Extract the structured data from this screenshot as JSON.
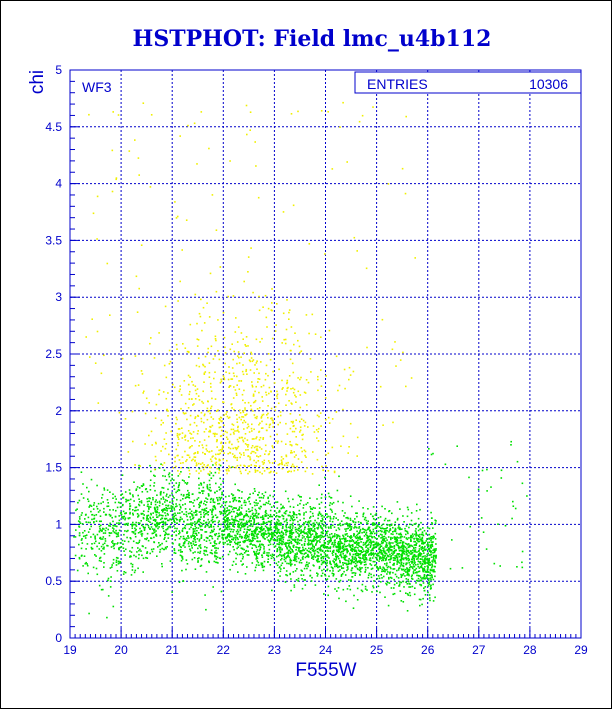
{
  "title": "HSTPHOT: Field lmc_u4b112",
  "panel_label": "WF3",
  "stats_box": {
    "label": "ENTRIES",
    "value": "10306"
  },
  "colors": {
    "frame": "#0000cc",
    "grid": "#0000cc",
    "title": "#0000cc",
    "points_good": "#00e000",
    "points_poor": "#f0f000"
  },
  "chart_data": {
    "type": "scatter",
    "title": "HSTPHOT: Field lmc_u4b112",
    "xlabel": "F555W",
    "ylabel": "chi",
    "xlim": [
      19,
      29
    ],
    "ylim": [
      0,
      5
    ],
    "xticks": [
      19,
      20,
      21,
      22,
      23,
      24,
      25,
      26,
      27,
      28,
      29
    ],
    "yticks": [
      0,
      0.5,
      1,
      1.5,
      2,
      2.5,
      3,
      3.5,
      4,
      4.5,
      5
    ],
    "grid": true,
    "entries": 10306,
    "series": [
      {
        "color": "green",
        "description_points": [
          [
            19.3,
            1.0
          ],
          [
            19.8,
            0.9
          ],
          [
            20.5,
            1.05
          ],
          [
            21.0,
            1.1
          ],
          [
            21.5,
            1.0
          ],
          [
            22.0,
            1.0
          ],
          [
            22.5,
            0.95
          ],
          [
            23.0,
            0.9
          ],
          [
            23.5,
            0.85
          ],
          [
            24.0,
            0.85
          ],
          [
            24.5,
            0.8
          ],
          [
            25.0,
            0.8
          ],
          [
            25.5,
            0.75
          ],
          [
            26.0,
            0.7
          ]
        ]
      },
      {
        "color": "yellow",
        "description_points": [
          [
            21.5,
            2.2
          ],
          [
            22.0,
            2.0
          ],
          [
            22.5,
            1.8
          ],
          [
            23.0,
            1.7
          ],
          [
            23.5,
            1.6
          ],
          [
            22.2,
            2.6
          ],
          [
            22.8,
            3.0
          ]
        ]
      }
    ]
  }
}
